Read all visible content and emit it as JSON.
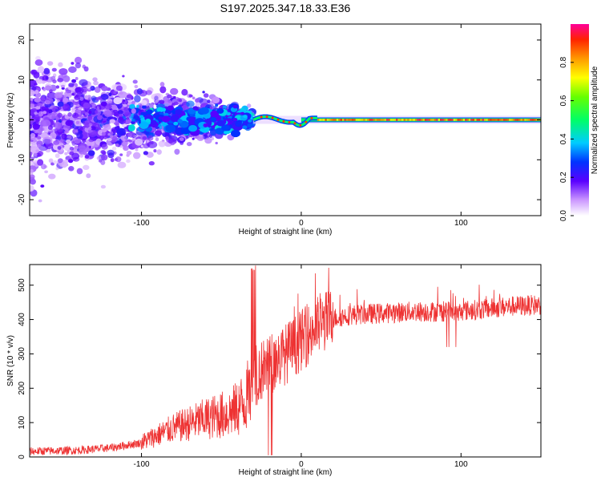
{
  "title": "S197.2025.347.18.33.E36",
  "chart_data": [
    {
      "type": "heatmap",
      "name": "spectrogram",
      "xlabel": "Height of straight line (km)",
      "ylabel": "Frequency (Hz)",
      "xlim": [
        -170,
        150
      ],
      "ylim": [
        -24,
        24
      ],
      "xticks": [
        -100,
        0,
        100
      ],
      "xtick_labels": [
        "-100",
        "0",
        "100"
      ],
      "yticks": [
        -20,
        -10,
        0,
        10,
        20
      ],
      "ytick_labels": [
        "-20",
        "-10",
        "0",
        "10",
        "20"
      ],
      "colorbar": {
        "label": "Normalized spectral amplitude",
        "range": [
          0.0,
          1.0
        ],
        "ticks": [
          0.0,
          0.2,
          0.4,
          0.6,
          0.8
        ],
        "tick_labels": [
          "0.0",
          "0.2",
          "0.4",
          "0.6",
          "0.8"
        ],
        "colormap": "rainbow"
      },
      "features": {
        "tone_line_x_start": -30,
        "tone_line_x_end": 150,
        "tone_frequency": 0,
        "scatter_region_x": [
          -170,
          -30
        ],
        "scatter_spread_hz_at_left": 24,
        "scatter_spread_hz_at_right": 4
      }
    },
    {
      "type": "line",
      "name": "snr",
      "xlabel": "Height of straight line (km)",
      "ylabel": "SNR (10 * v/v)",
      "xlim": [
        -170,
        150
      ],
      "ylim": [
        0,
        560
      ],
      "xticks": [
        -100,
        0,
        100
      ],
      "xtick_labels": [
        "-100",
        "0",
        "100"
      ],
      "yticks": [
        0,
        100,
        200,
        300,
        400,
        500
      ],
      "ytick_labels": [
        "0",
        "100",
        "200",
        "300",
        "400",
        "500"
      ],
      "color": "#ee3333",
      "trend": {
        "x": [
          -170,
          -140,
          -120,
          -100,
          -80,
          -60,
          -45,
          -35,
          -28,
          -20,
          -10,
          0,
          10,
          20,
          30,
          50,
          70,
          90,
          110,
          130,
          150
        ],
        "y": [
          15,
          18,
          25,
          40,
          80,
          105,
          120,
          150,
          230,
          260,
          290,
          330,
          370,
          400,
          410,
          415,
          420,
          420,
          425,
          435,
          440
        ]
      }
    }
  ]
}
